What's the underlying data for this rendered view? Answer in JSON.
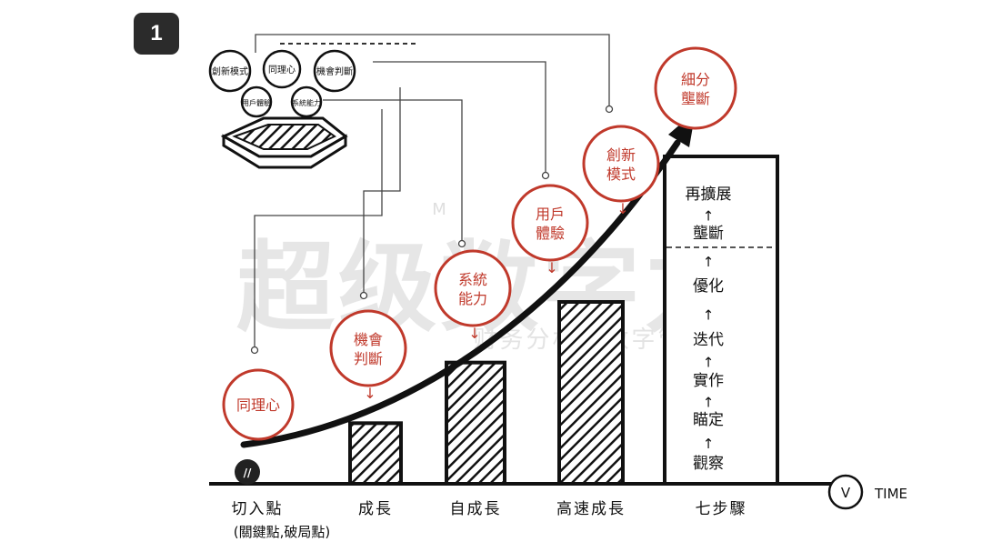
{
  "badge": "1",
  "watermark": {
    "title": "超级数字力",
    "subtitle": "财务分析与数字管理能力",
    "tm": "M"
  },
  "time_label": "TIME",
  "clock_mark": "V",
  "start_mark": "//",
  "chart_data": {
    "type": "bar",
    "categories": [
      "切入點",
      "成長",
      "自成長",
      "高速成長",
      "七步驟"
    ],
    "category_note": "(關鍵點,破局點)",
    "values": [
      0,
      1,
      2,
      3,
      5.4
    ],
    "curve_labels": [
      "同理心",
      "機會判斷",
      "系統能力",
      "用戶體驗",
      "創新模式",
      "細分壟斷"
    ],
    "steps": [
      "觀察",
      "瞄定",
      "實作",
      "迭代",
      "優化",
      "壟斷",
      "再擴展"
    ],
    "hub_nodes": [
      "創新模式",
      "同理心",
      "機會判斷",
      "用戶體驗",
      "系統能力"
    ],
    "ylim": [
      0,
      6
    ]
  }
}
